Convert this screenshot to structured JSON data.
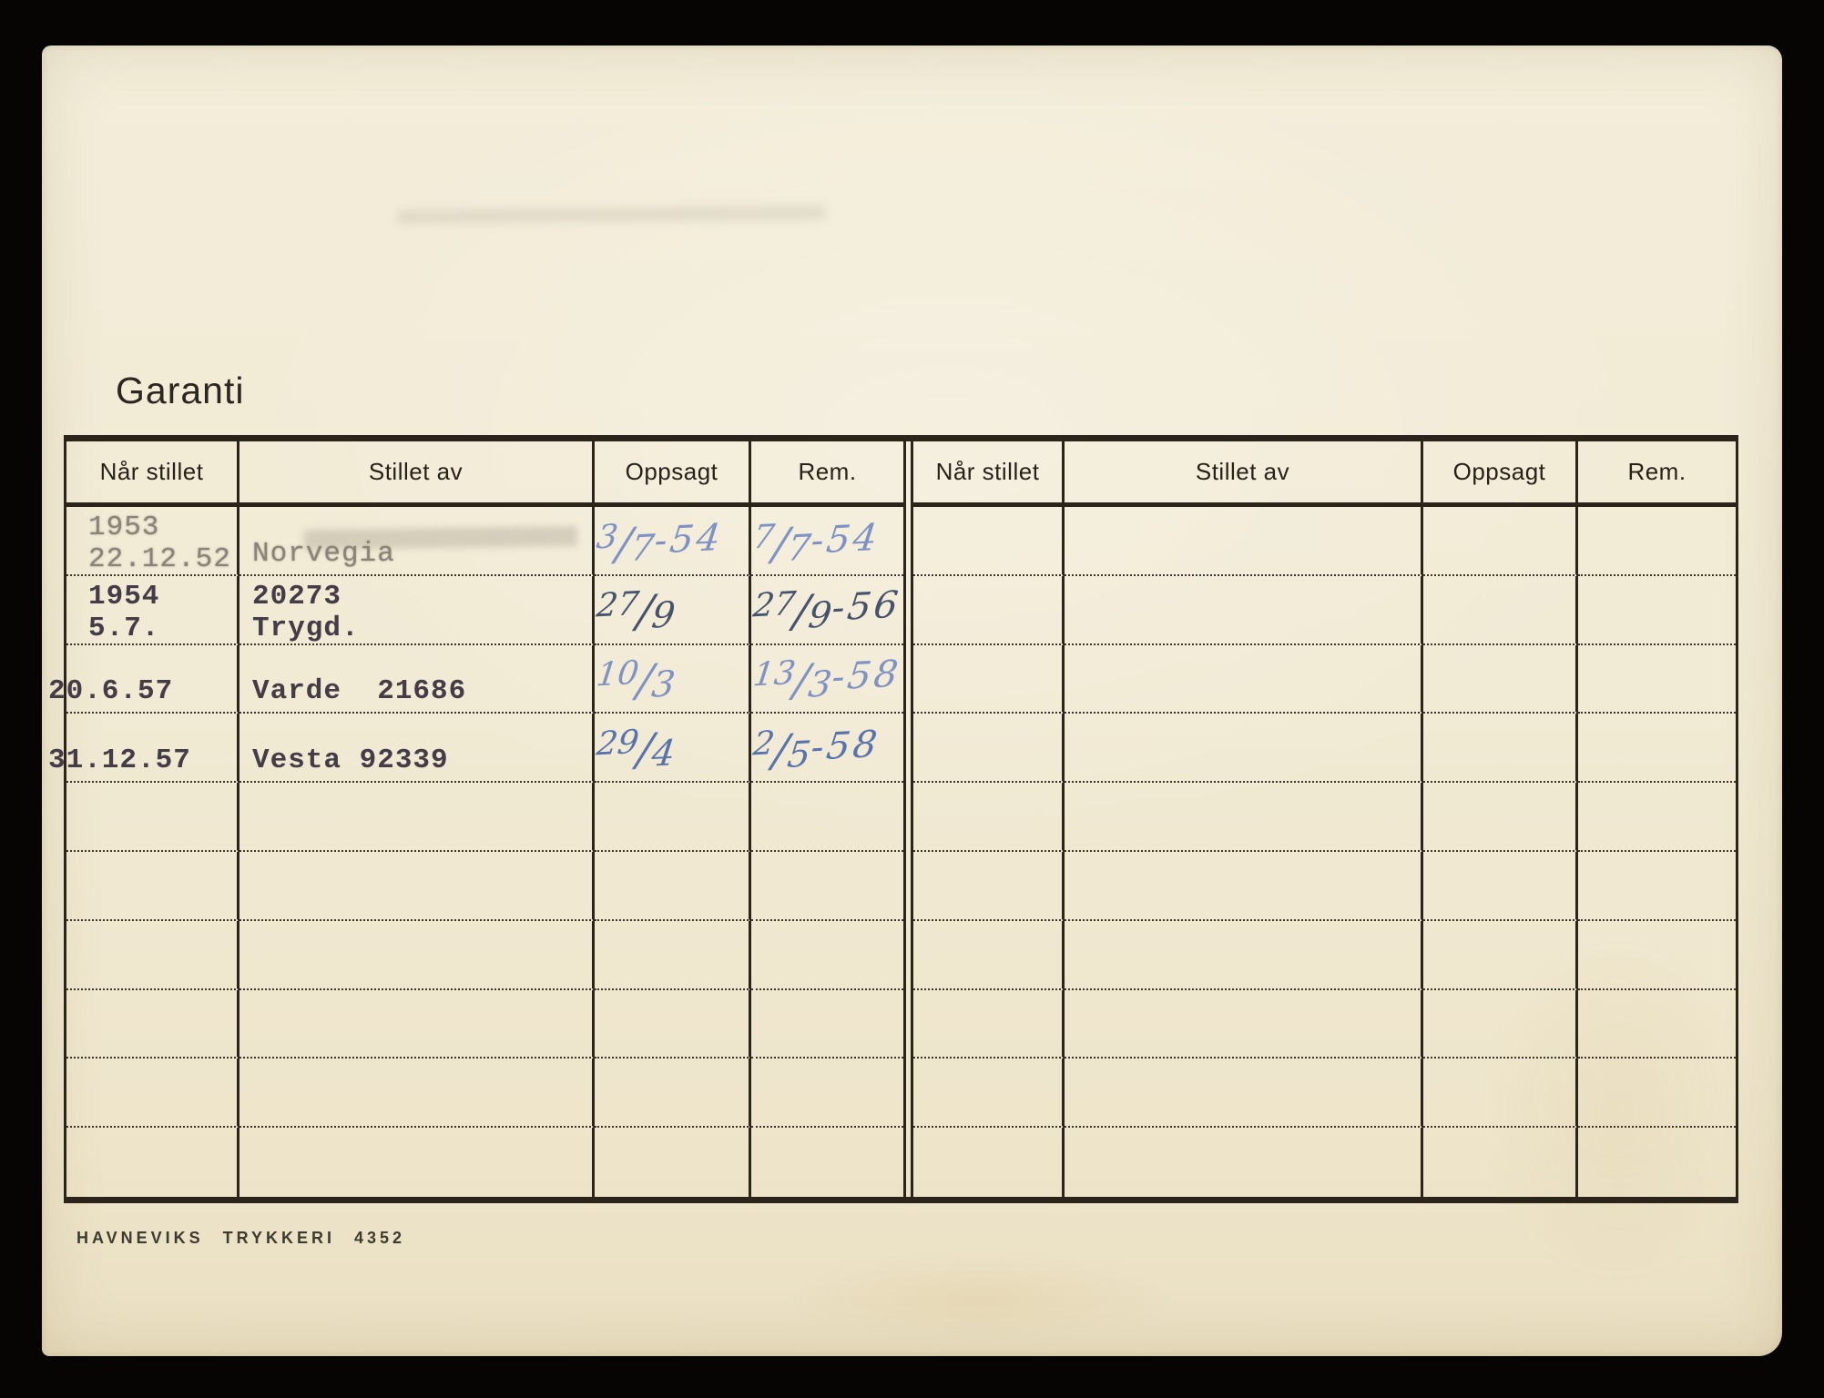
{
  "page": {
    "title": "Garanti",
    "printer_footer": "HAVNEVIKS TRYKKERI  4352"
  },
  "colors": {
    "ink": "#2a241a",
    "dot": "#3a342a",
    "typed": "#443d47",
    "typedfaded": "#8a8378",
    "handlight": "#7e92c5",
    "handmid": "#5874ae",
    "handdark": "#46536d",
    "card_bg": "#f1ead4",
    "scan_bg": "#070504"
  },
  "table": {
    "headers": [
      "Når stillet",
      "Stillet av",
      "Oppsagt",
      "Rem."
    ],
    "rows_left": [
      [
        [
          {
            "t": "1953",
            "s": "typed-faded"
          },
          {
            "t": "22.12.52",
            "s": "typed-faded"
          }
        ],
        [
          {
            "t": "Norvegia",
            "s": "typed-faded single"
          }
        ],
        [
          {
            "t": "3/7-54",
            "s": "hand hand-light"
          }
        ],
        [
          {
            "t": "7/7-54",
            "s": "hand hand-light"
          }
        ]
      ],
      [
        [
          {
            "t": "1954",
            "s": "typed"
          },
          {
            "t": "5.7.",
            "s": "typed"
          }
        ],
        [
          {
            "t": "20273",
            "s": "typed"
          },
          {
            "t": "Trygd.",
            "s": "typed"
          }
        ],
        [
          {
            "t": "27/9",
            "s": "hand hand-dark"
          }
        ],
        [
          {
            "t": "27/9-56",
            "s": "hand hand-dark"
          }
        ]
      ],
      [
        [
          {
            "t": "20.6.57",
            "s": "typed single outdent"
          }
        ],
        [
          {
            "t": "Varde  21686",
            "s": "typed single"
          }
        ],
        [
          {
            "t": "10/3",
            "s": "hand hand-light"
          }
        ],
        [
          {
            "t": "13/3-58",
            "s": "hand hand-light"
          }
        ]
      ],
      [
        [
          {
            "t": "31.12.57",
            "s": "typed single outdent"
          }
        ],
        [
          {
            "t": "Vesta 92339",
            "s": "typed single"
          }
        ],
        [
          {
            "t": "29/4",
            "s": "hand hand-mid"
          }
        ],
        [
          {
            "t": "2/5-58",
            "s": "hand hand-mid"
          }
        ]
      ],
      [
        [],
        [],
        [],
        []
      ],
      [
        [],
        [],
        [],
        []
      ],
      [
        [],
        [],
        [],
        []
      ],
      [
        [],
        [],
        [],
        []
      ],
      [
        [],
        [],
        [],
        []
      ],
      [
        [],
        [],
        [],
        []
      ]
    ],
    "rows_right": [
      [
        [],
        [],
        [],
        []
      ],
      [
        [],
        [],
        [],
        []
      ],
      [
        [],
        [],
        [],
        []
      ],
      [
        [],
        [],
        [],
        []
      ],
      [
        [],
        [],
        [],
        []
      ],
      [
        [],
        [],
        [],
        []
      ],
      [
        [],
        [],
        [],
        []
      ],
      [
        [],
        [],
        [],
        []
      ],
      [
        [],
        [],
        [],
        []
      ],
      [
        [],
        [],
        [],
        []
      ]
    ]
  }
}
